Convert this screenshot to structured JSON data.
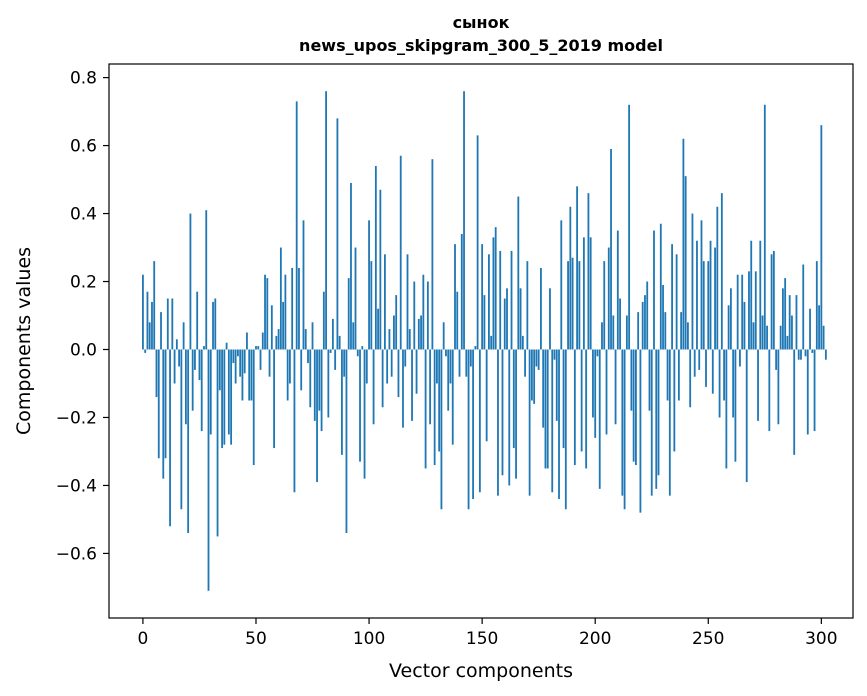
{
  "chart_data": {
    "type": "bar",
    "title": "сынок",
    "subtitle": "news_upos_skipgram_300_5_2019 model",
    "xlabel": "Vector components",
    "ylabel": "Components values",
    "xlim": [
      -15,
      314
    ],
    "ylim": [
      -0.79,
      0.84
    ],
    "xticks": [
      0,
      50,
      100,
      150,
      200,
      250,
      300
    ],
    "yticks": [
      -0.6,
      -0.4,
      -0.2,
      0.0,
      0.2,
      0.4,
      0.6,
      0.8
    ],
    "ytick_labels": [
      "−0.6",
      "−0.4",
      "−0.2",
      "0.0",
      "0.2",
      "0.4",
      "0.6",
      "0.8"
    ],
    "bar_color": "#1f77b4",
    "grid": false,
    "values": [
      0.22,
      -0.01,
      0.17,
      0.08,
      0.14,
      0.26,
      -0.14,
      -0.32,
      0.11,
      -0.38,
      -0.32,
      0.15,
      -0.52,
      0.15,
      -0.1,
      0.03,
      -0.05,
      -0.47,
      0.08,
      -0.22,
      -0.54,
      0.4,
      -0.18,
      -0.06,
      0.17,
      -0.09,
      -0.24,
      0.01,
      0.41,
      -0.71,
      -0.25,
      0.14,
      0.15,
      -0.55,
      -0.12,
      -0.29,
      -0.28,
      0.02,
      -0.25,
      -0.28,
      -0.04,
      -0.1,
      -0.02,
      -0.08,
      -0.15,
      -0.07,
      0.05,
      -0.15,
      -0.15,
      -0.34,
      0.01,
      0.01,
      -0.06,
      0.05,
      0.22,
      0.21,
      -0.08,
      0.13,
      -0.29,
      0.04,
      0.06,
      0.3,
      0.14,
      0.22,
      -0.15,
      -0.1,
      0.24,
      -0.42,
      0.73,
      0.24,
      -0.12,
      0.38,
      0.06,
      -0.04,
      -0.17,
      0.08,
      -0.21,
      -0.39,
      -0.18,
      -0.24,
      0.17,
      0.76,
      -0.2,
      -0.01,
      0.09,
      -0.06,
      0.68,
      0.04,
      -0.31,
      -0.08,
      -0.54,
      0.21,
      0.49,
      0.08,
      0.3,
      -0.02,
      -0.33,
      0.01,
      -0.38,
      -0.1,
      0.38,
      0.26,
      -0.22,
      0.54,
      0.12,
      0.47,
      -0.17,
      0.28,
      -0.1,
      0.06,
      -0.08,
      0.1,
      0.16,
      -0.14,
      0.57,
      -0.23,
      -0.05,
      0.28,
      0.06,
      -0.21,
      0.2,
      -0.13,
      0.09,
      0.1,
      0.22,
      -0.35,
      0.2,
      -0.22,
      0.56,
      -0.34,
      -0.1,
      -0.3,
      -0.47,
      0.08,
      -0.02,
      -0.18,
      -0.1,
      -0.28,
      0.31,
      0.17,
      -0.08,
      0.34,
      0.76,
      -0.08,
      -0.47,
      -0.05,
      -0.44,
      0.01,
      0.63,
      -0.42,
      0.31,
      0.16,
      -0.27,
      0.28,
      0.04,
      0.33,
      0.36,
      -0.43,
      0.29,
      -0.37,
      0.15,
      0.18,
      -0.4,
      0.29,
      -0.29,
      -0.38,
      0.45,
      0.18,
      0.04,
      -0.08,
      0.26,
      -0.43,
      -0.15,
      -0.16,
      -0.05,
      -0.06,
      0.24,
      -0.23,
      -0.35,
      -0.35,
      0.18,
      -0.42,
      -0.03,
      -0.21,
      -0.44,
      0.38,
      -0.29,
      -0.47,
      0.26,
      0.42,
      0.27,
      -0.34,
      0.48,
      0.26,
      -0.3,
      0.33,
      -0.35,
      0.46,
      0.33,
      -0.2,
      -0.26,
      -0.02,
      -0.41,
      0.08,
      0.26,
      -0.25,
      0.3,
      0.59,
      0.1,
      -0.22,
      0.35,
      0.15,
      -0.43,
      -0.47,
      0.1,
      0.72,
      -0.18,
      -0.33,
      -0.34,
      0.11,
      -0.48,
      0.14,
      0.16,
      0.2,
      -0.18,
      -0.43,
      0.35,
      -0.41,
      -0.37,
      0.37,
      0.19,
      0.11,
      -0.15,
      -0.43,
      0.31,
      -0.3,
      0.28,
      -0.15,
      0.11,
      0.62,
      0.51,
      0.08,
      -0.17,
      0.4,
      -0.08,
      0.32,
      -0.06,
      0.38,
      0.26,
      -0.11,
      0.26,
      0.32,
      -0.13,
      0.3,
      0.42,
      -0.2,
      0.46,
      -0.15,
      -0.35,
      0.13,
      0.18,
      -0.2,
      -0.33,
      0.22,
      -0.05,
      0.22,
      0.14,
      -0.39,
      0.23,
      0.32,
      0.08,
      0.23,
      -0.21,
      0.32,
      0.1,
      0.72,
      0.07,
      -0.24,
      0.28,
      0.29,
      -0.06,
      -0.22,
      0.07,
      0.18,
      0.21,
      0.04,
      0.16,
      0.1,
      -0.31,
      0.16,
      -0.03,
      -0.03,
      0.25,
      -0.02,
      -0.25,
      0.12,
      -0.01,
      -0.24,
      0.26,
      0.13,
      0.66,
      0.07,
      -0.03
    ]
  }
}
